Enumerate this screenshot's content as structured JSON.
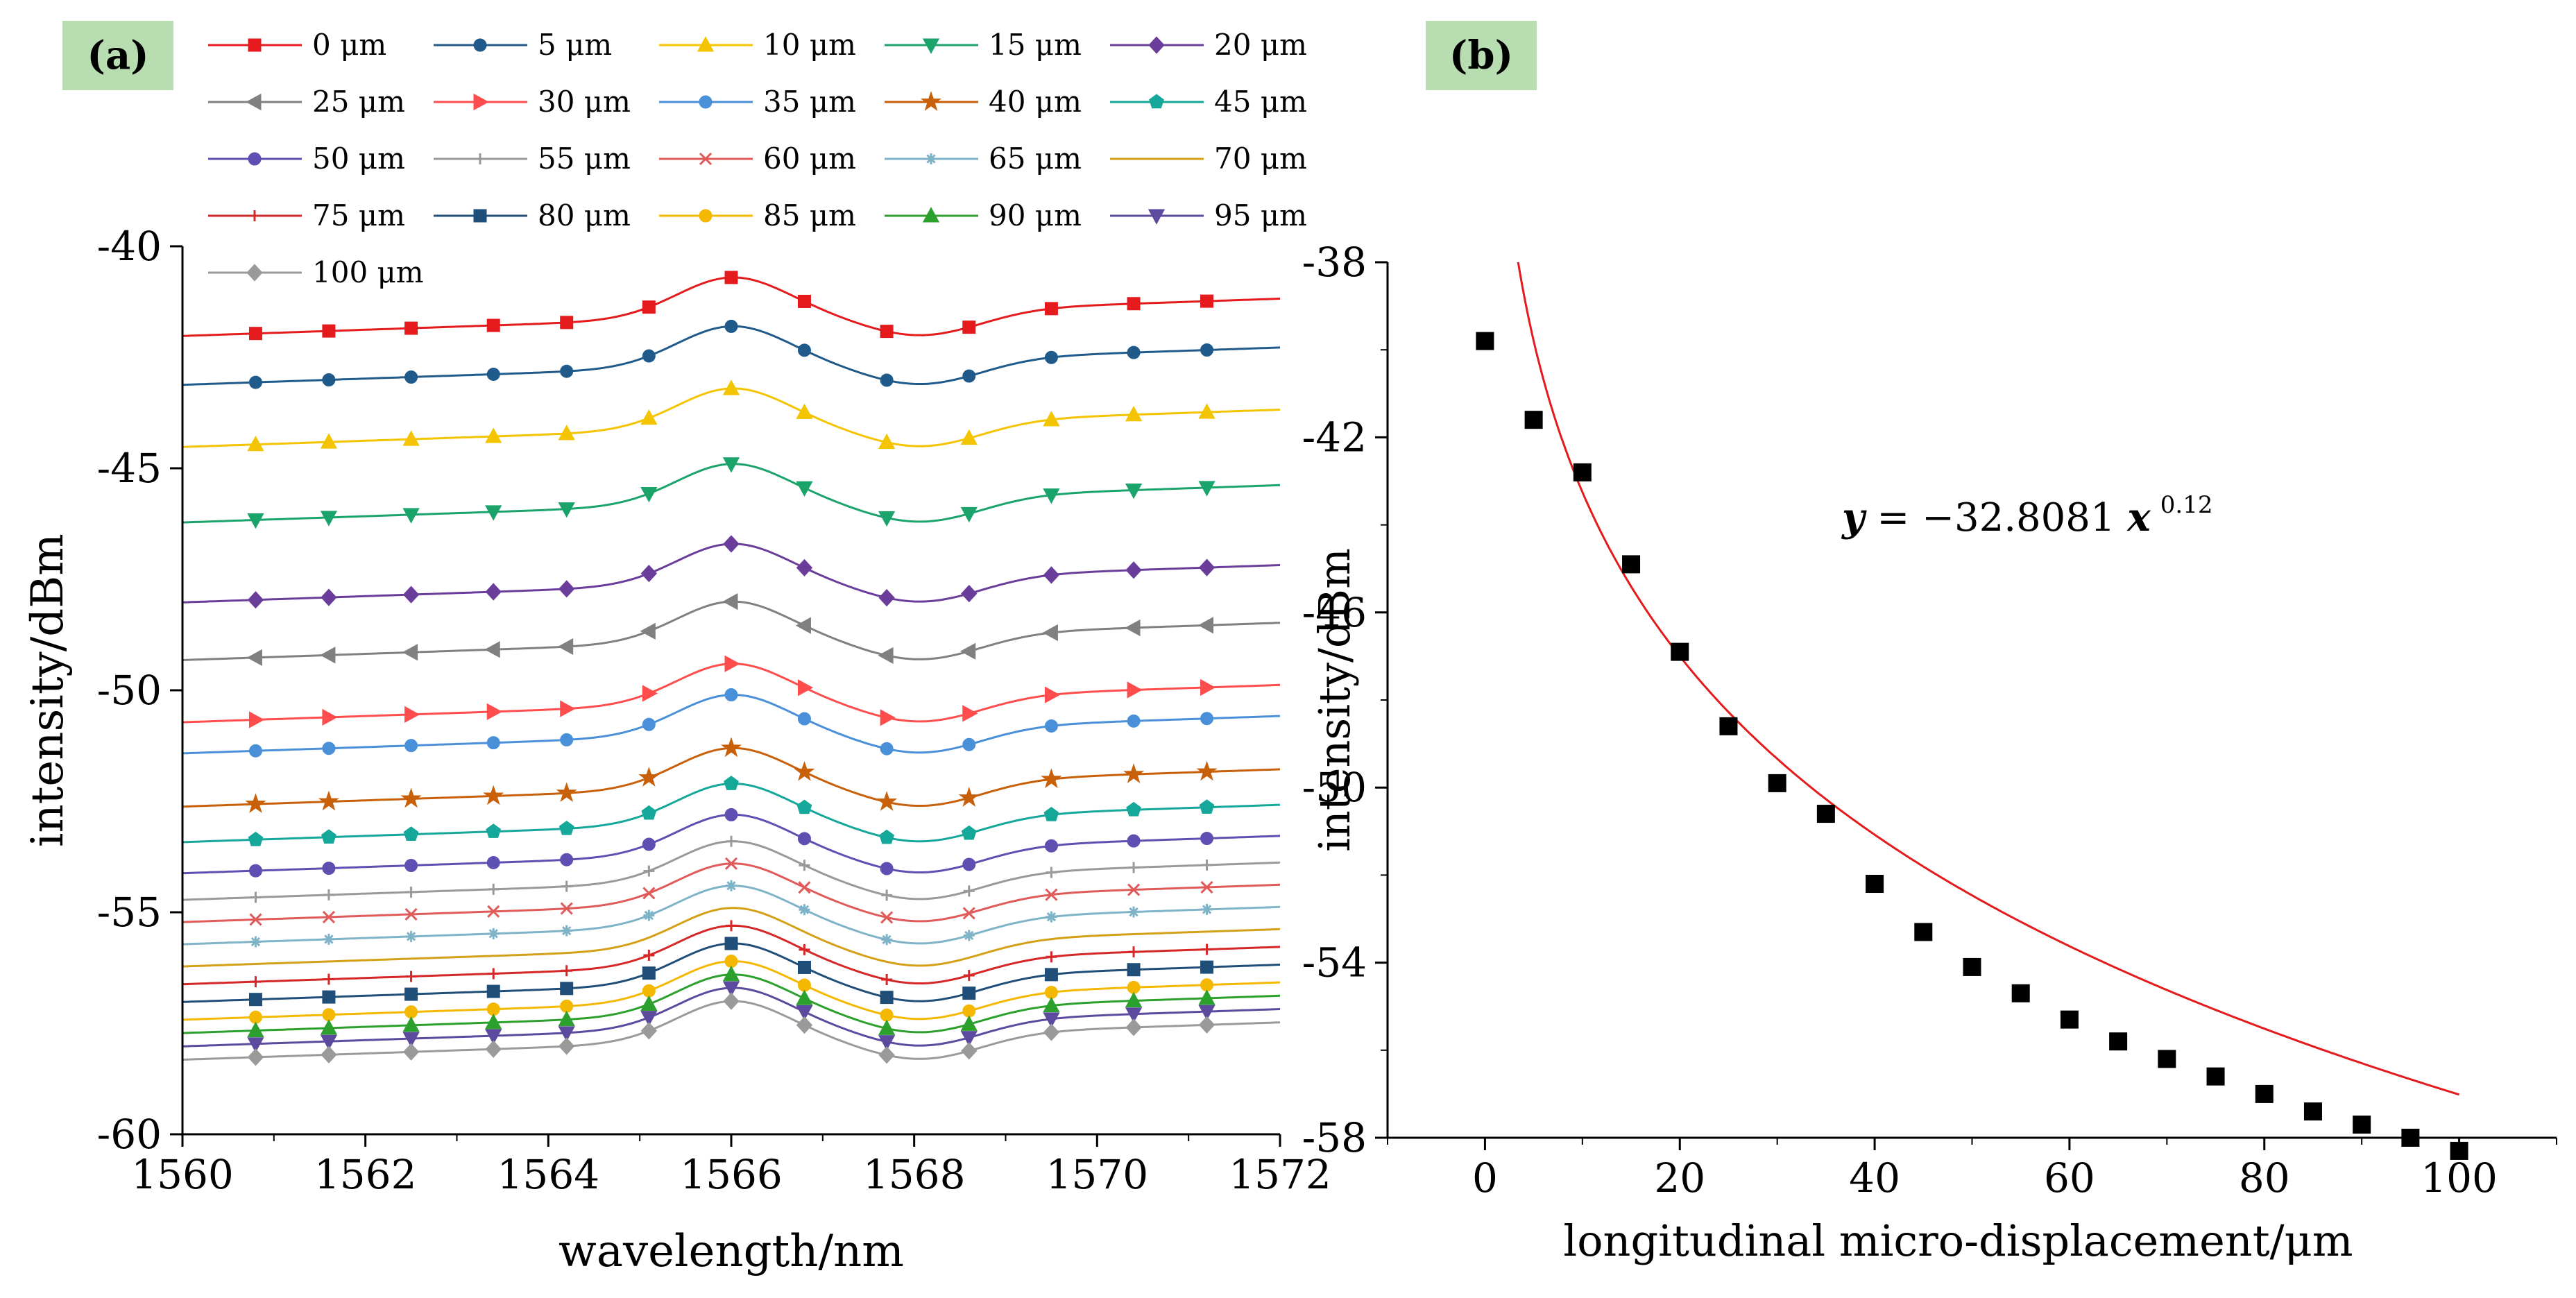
{
  "panel_labels": {
    "a": "(a)",
    "b": "(b)"
  },
  "chart_data": [
    {
      "panel": "(a)",
      "type": "line",
      "xlabel": "wavelength/nm",
      "ylabel": "intensity/dBm",
      "xlim": [
        1560,
        1572
      ],
      "ylim": [
        -60,
        -40
      ],
      "xticks": [
        1560,
        1562,
        1564,
        1566,
        1568,
        1570,
        1572
      ],
      "yticks": [
        -40,
        -45,
        -50,
        -55,
        -60
      ],
      "grid": false,
      "legend_position": "top",
      "x": [
        1560.8,
        1561.6,
        1562.5,
        1563.4,
        1564.2,
        1565.1,
        1566.0,
        1566.8,
        1567.7,
        1568.6,
        1569.5,
        1570.4,
        1571.2
      ],
      "series": [
        {
          "name": "0 μm",
          "color": "#e41a1c",
          "marker": "square",
          "offset": -41.6
        },
        {
          "name": "5 μm",
          "color": "#1f5a8a",
          "marker": "circle",
          "offset": -42.7
        },
        {
          "name": "10 μm",
          "color": "#f5c400",
          "marker": "triangle-up",
          "offset": -44.1
        },
        {
          "name": "15 μm",
          "color": "#1aa36b",
          "marker": "triangle-down",
          "offset": -45.8
        },
        {
          "name": "20 μm",
          "color": "#6a3d9a",
          "marker": "diamond",
          "offset": -47.6
        },
        {
          "name": "25 μm",
          "color": "#808080",
          "marker": "triangle-left",
          "offset": -48.9
        },
        {
          "name": "30 μm",
          "color": "#ff4d4d",
          "marker": "triangle-right",
          "offset": -50.3
        },
        {
          "name": "35 μm",
          "color": "#4a90d9",
          "marker": "circle",
          "offset": -51.0
        },
        {
          "name": "40 μm",
          "color": "#c8600a",
          "marker": "star",
          "offset": -52.2
        },
        {
          "name": "45 μm",
          "color": "#15a89a",
          "marker": "pentagon",
          "offset": -53.0
        },
        {
          "name": "50 μm",
          "color": "#5e4fb3",
          "marker": "circle",
          "offset": -53.7
        },
        {
          "name": "55 μm",
          "color": "#999999",
          "marker": "plus",
          "offset": -54.3
        },
        {
          "name": "60 μm",
          "color": "#e05a5a",
          "marker": "cross",
          "offset": -54.8
        },
        {
          "name": "65 μm",
          "color": "#7fb3c8",
          "marker": "asterisk",
          "offset": -55.3
        },
        {
          "name": "70 μm",
          "color": "#d4a017",
          "marker": "none",
          "offset": -55.8
        },
        {
          "name": "75 μm",
          "color": "#d62728",
          "marker": "plus",
          "offset": -56.2
        },
        {
          "name": "80 μm",
          "color": "#1f4e79",
          "marker": "square",
          "offset": -56.6
        },
        {
          "name": "85 μm",
          "color": "#f5b800",
          "marker": "circle",
          "offset": -57.0
        },
        {
          "name": "90 μm",
          "color": "#2ca02c",
          "marker": "triangle-up",
          "offset": -57.3
        },
        {
          "name": "95 μm",
          "color": "#5b4a9e",
          "marker": "triangle-down",
          "offset": -57.6
        },
        {
          "name": "100 μm",
          "color": "#9a9a9a",
          "marker": "diamond",
          "offset": -57.9
        }
      ]
    },
    {
      "panel": "(b)",
      "type": "scatter",
      "xlabel": "longitudinal micro-displacement/μm",
      "ylabel": "intensity/dBm",
      "xlim": [
        -10,
        110
      ],
      "ylim": [
        -58,
        -38
      ],
      "xticks": [
        0,
        20,
        40,
        60,
        80,
        100
      ],
      "yticks": [
        -38,
        -42,
        -46,
        -50,
        -54,
        -58
      ],
      "grid": false,
      "points": {
        "x": [
          0,
          5,
          10,
          15,
          20,
          25,
          30,
          35,
          40,
          45,
          50,
          55,
          60,
          65,
          70,
          75,
          80,
          85,
          90,
          95,
          100
        ],
        "y": [
          -39.8,
          -41.6,
          -42.8,
          -44.9,
          -46.9,
          -48.6,
          -49.9,
          -50.6,
          -52.2,
          -53.3,
          -54.1,
          -54.7,
          -55.3,
          -55.8,
          -56.2,
          -56.6,
          -57.0,
          -57.4,
          -57.7,
          -58.0,
          -58.3
        ]
      },
      "fit": {
        "equation_parts": [
          "y",
          " = −32.8081 ",
          "x",
          "0.12"
        ],
        "coefficient": -32.8081,
        "exponent": 0.12,
        "color": "#e41a1c"
      },
      "point_color": "#000000"
    }
  ]
}
